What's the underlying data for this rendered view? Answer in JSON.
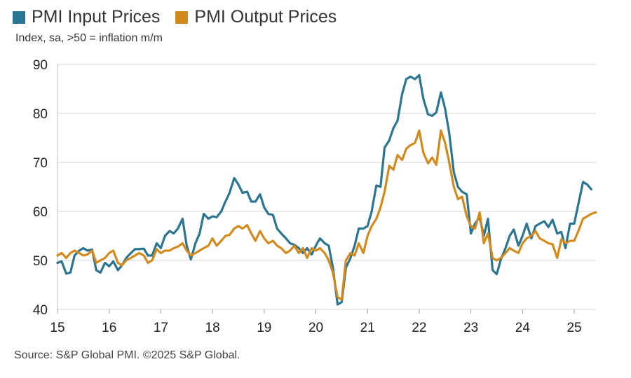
{
  "chart_data": {
    "type": "line",
    "title": "",
    "subtitle": "Index, sa, >50 = inflation m/m",
    "source": "Source: S&P Global PMI. ©2025 S&P Global.",
    "xlabel": "",
    "ylabel": "",
    "ylim": [
      40,
      90
    ],
    "yticks": [
      40,
      50,
      60,
      70,
      80,
      90
    ],
    "xlim": [
      2015.0,
      2025.42
    ],
    "xticks": [
      {
        "value": 2015,
        "label": "15"
      },
      {
        "value": 2016,
        "label": "16"
      },
      {
        "value": 2017,
        "label": "17"
      },
      {
        "value": 2018,
        "label": "18"
      },
      {
        "value": 2019,
        "label": "19"
      },
      {
        "value": 2020,
        "label": "20"
      },
      {
        "value": 2021,
        "label": "21"
      },
      {
        "value": 2022,
        "label": "22"
      },
      {
        "value": 2023,
        "label": "23"
      },
      {
        "value": 2024,
        "label": "24"
      },
      {
        "value": 2025,
        "label": "25"
      }
    ],
    "grid": "horizontal",
    "legend_position": "top-left",
    "series": [
      {
        "name": "PMI Input Prices",
        "color": "#2a7591",
        "points": [
          [
            2015.0,
            49.5
          ],
          [
            2015.08,
            49.8
          ],
          [
            2015.17,
            47.3
          ],
          [
            2015.25,
            47.5
          ],
          [
            2015.33,
            51.0
          ],
          [
            2015.42,
            52.0
          ],
          [
            2015.5,
            52.5
          ],
          [
            2015.58,
            52.0
          ],
          [
            2015.67,
            52.2
          ],
          [
            2015.75,
            48.0
          ],
          [
            2015.83,
            47.5
          ],
          [
            2015.92,
            49.5
          ],
          [
            2016.0,
            48.8
          ],
          [
            2016.08,
            49.8
          ],
          [
            2016.17,
            48.0
          ],
          [
            2016.25,
            49.0
          ],
          [
            2016.33,
            50.5
          ],
          [
            2016.42,
            51.5
          ],
          [
            2016.5,
            52.3
          ],
          [
            2016.58,
            52.3
          ],
          [
            2016.67,
            52.4
          ],
          [
            2016.75,
            51.0
          ],
          [
            2016.83,
            51.0
          ],
          [
            2016.92,
            53.5
          ],
          [
            2017.0,
            52.5
          ],
          [
            2017.08,
            55.0
          ],
          [
            2017.17,
            56.0
          ],
          [
            2017.25,
            55.5
          ],
          [
            2017.33,
            56.5
          ],
          [
            2017.42,
            58.5
          ],
          [
            2017.5,
            53.0
          ],
          [
            2017.58,
            50.2
          ],
          [
            2017.67,
            53.5
          ],
          [
            2017.75,
            55.5
          ],
          [
            2017.83,
            59.5
          ],
          [
            2017.92,
            58.5
          ],
          [
            2018.0,
            59.0
          ],
          [
            2018.08,
            58.8
          ],
          [
            2018.17,
            60.0
          ],
          [
            2018.25,
            62.0
          ],
          [
            2018.33,
            63.8
          ],
          [
            2018.42,
            66.8
          ],
          [
            2018.5,
            65.5
          ],
          [
            2018.58,
            63.8
          ],
          [
            2018.67,
            64.0
          ],
          [
            2018.75,
            62.0
          ],
          [
            2018.83,
            62.0
          ],
          [
            2018.92,
            63.5
          ],
          [
            2019.0,
            60.8
          ],
          [
            2019.08,
            59.5
          ],
          [
            2019.17,
            59.3
          ],
          [
            2019.25,
            56.5
          ],
          [
            2019.33,
            55.5
          ],
          [
            2019.42,
            54.5
          ],
          [
            2019.5,
            53.5
          ],
          [
            2019.58,
            53.2
          ],
          [
            2019.67,
            52.5
          ],
          [
            2019.75,
            51.5
          ],
          [
            2019.83,
            52.5
          ],
          [
            2019.92,
            51.2
          ],
          [
            2020.0,
            53.0
          ],
          [
            2020.08,
            54.5
          ],
          [
            2020.17,
            53.5
          ],
          [
            2020.25,
            53.0
          ],
          [
            2020.33,
            48.5
          ],
          [
            2020.42,
            41.0
          ],
          [
            2020.5,
            41.5
          ],
          [
            2020.58,
            48.5
          ],
          [
            2020.67,
            50.5
          ],
          [
            2020.75,
            53.0
          ],
          [
            2020.83,
            56.5
          ],
          [
            2020.92,
            56.5
          ],
          [
            2021.0,
            57.0
          ],
          [
            2021.08,
            60.0
          ],
          [
            2021.17,
            65.3
          ],
          [
            2021.25,
            65.0
          ],
          [
            2021.33,
            73.0
          ],
          [
            2021.42,
            74.5
          ],
          [
            2021.5,
            77.0
          ],
          [
            2021.58,
            78.5
          ],
          [
            2021.67,
            84.0
          ],
          [
            2021.75,
            87.0
          ],
          [
            2021.83,
            87.5
          ],
          [
            2021.92,
            87.0
          ],
          [
            2022.0,
            87.8
          ],
          [
            2022.08,
            83.0
          ],
          [
            2022.17,
            79.8
          ],
          [
            2022.25,
            79.5
          ],
          [
            2022.33,
            80.2
          ],
          [
            2022.42,
            84.3
          ],
          [
            2022.5,
            81.0
          ],
          [
            2022.58,
            76.0
          ],
          [
            2022.67,
            68.0
          ],
          [
            2022.75,
            65.0
          ],
          [
            2022.83,
            64.0
          ],
          [
            2022.92,
            63.5
          ],
          [
            2023.0,
            55.5
          ],
          [
            2023.08,
            57.5
          ],
          [
            2023.17,
            58.8
          ],
          [
            2023.25,
            55.0
          ],
          [
            2023.33,
            58.5
          ],
          [
            2023.42,
            48.0
          ],
          [
            2023.5,
            47.2
          ],
          [
            2023.58,
            50.2
          ],
          [
            2023.67,
            52.5
          ],
          [
            2023.75,
            55.0
          ],
          [
            2023.83,
            56.3
          ],
          [
            2023.92,
            53.0
          ],
          [
            2024.0,
            55.0
          ],
          [
            2024.08,
            57.5
          ],
          [
            2024.17,
            54.5
          ],
          [
            2024.25,
            57.0
          ],
          [
            2024.33,
            57.5
          ],
          [
            2024.42,
            58.0
          ],
          [
            2024.5,
            56.8
          ],
          [
            2024.58,
            58.3
          ],
          [
            2024.67,
            55.5
          ],
          [
            2024.75,
            55.8
          ],
          [
            2024.83,
            52.5
          ],
          [
            2024.92,
            57.5
          ],
          [
            2025.0,
            57.5
          ],
          [
            2025.08,
            61.5
          ],
          [
            2025.17,
            66.0
          ],
          [
            2025.25,
            65.5
          ],
          [
            2025.33,
            64.5
          ]
        ]
      },
      {
        "name": "PMI Output Prices",
        "color": "#d38a1c",
        "points": [
          [
            2015.0,
            51.0
          ],
          [
            2015.08,
            51.5
          ],
          [
            2015.17,
            50.5
          ],
          [
            2015.25,
            51.5
          ],
          [
            2015.33,
            52.0
          ],
          [
            2015.42,
            51.5
          ],
          [
            2015.5,
            51.0
          ],
          [
            2015.58,
            51.2
          ],
          [
            2015.67,
            52.0
          ],
          [
            2015.75,
            49.5
          ],
          [
            2015.83,
            50.0
          ],
          [
            2015.92,
            50.5
          ],
          [
            2016.0,
            51.5
          ],
          [
            2016.08,
            52.0
          ],
          [
            2016.17,
            49.5
          ],
          [
            2016.25,
            49.0
          ],
          [
            2016.33,
            50.0
          ],
          [
            2016.42,
            50.5
          ],
          [
            2016.5,
            51.0
          ],
          [
            2016.58,
            51.5
          ],
          [
            2016.67,
            51.0
          ],
          [
            2016.75,
            49.5
          ],
          [
            2016.83,
            50.0
          ],
          [
            2016.92,
            52.3
          ],
          [
            2017.0,
            51.5
          ],
          [
            2017.08,
            52.0
          ],
          [
            2017.17,
            52.0
          ],
          [
            2017.25,
            52.5
          ],
          [
            2017.33,
            52.8
          ],
          [
            2017.42,
            53.5
          ],
          [
            2017.5,
            52.0
          ],
          [
            2017.58,
            51.0
          ],
          [
            2017.67,
            51.5
          ],
          [
            2017.75,
            52.0
          ],
          [
            2017.83,
            52.5
          ],
          [
            2017.92,
            53.0
          ],
          [
            2018.0,
            54.5
          ],
          [
            2018.08,
            53.0
          ],
          [
            2018.17,
            54.0
          ],
          [
            2018.25,
            55.0
          ],
          [
            2018.33,
            55.2
          ],
          [
            2018.42,
            56.5
          ],
          [
            2018.5,
            57.0
          ],
          [
            2018.58,
            56.5
          ],
          [
            2018.67,
            57.2
          ],
          [
            2018.75,
            55.5
          ],
          [
            2018.83,
            54.0
          ],
          [
            2018.92,
            56.0
          ],
          [
            2019.0,
            54.5
          ],
          [
            2019.08,
            53.5
          ],
          [
            2019.17,
            54.0
          ],
          [
            2019.25,
            53.0
          ],
          [
            2019.33,
            52.5
          ],
          [
            2019.42,
            51.5
          ],
          [
            2019.5,
            52.0
          ],
          [
            2019.58,
            53.0
          ],
          [
            2019.67,
            51.5
          ],
          [
            2019.75,
            52.5
          ],
          [
            2019.83,
            50.5
          ],
          [
            2019.92,
            52.5
          ],
          [
            2020.0,
            52.0
          ],
          [
            2020.08,
            52.5
          ],
          [
            2020.17,
            51.5
          ],
          [
            2020.25,
            50.0
          ],
          [
            2020.33,
            47.5
          ],
          [
            2020.42,
            42.5
          ],
          [
            2020.5,
            42.0
          ],
          [
            2020.58,
            50.0
          ],
          [
            2020.67,
            51.5
          ],
          [
            2020.75,
            51.0
          ],
          [
            2020.83,
            53.5
          ],
          [
            2020.92,
            51.5
          ],
          [
            2021.0,
            55.0
          ],
          [
            2021.08,
            57.0
          ],
          [
            2021.17,
            58.5
          ],
          [
            2021.25,
            60.8
          ],
          [
            2021.33,
            64.0
          ],
          [
            2021.42,
            69.3
          ],
          [
            2021.5,
            68.5
          ],
          [
            2021.58,
            71.5
          ],
          [
            2021.67,
            70.5
          ],
          [
            2021.75,
            72.8
          ],
          [
            2021.83,
            73.5
          ],
          [
            2021.92,
            74.0
          ],
          [
            2022.0,
            76.5
          ],
          [
            2022.08,
            72.0
          ],
          [
            2022.17,
            69.8
          ],
          [
            2022.25,
            71.0
          ],
          [
            2022.33,
            69.5
          ],
          [
            2022.42,
            76.5
          ],
          [
            2022.5,
            74.0
          ],
          [
            2022.58,
            70.0
          ],
          [
            2022.67,
            65.0
          ],
          [
            2022.75,
            62.5
          ],
          [
            2022.83,
            63.0
          ],
          [
            2022.92,
            59.0
          ],
          [
            2023.0,
            57.0
          ],
          [
            2023.08,
            56.5
          ],
          [
            2023.17,
            59.8
          ],
          [
            2023.25,
            53.5
          ],
          [
            2023.33,
            55.5
          ],
          [
            2023.42,
            50.5
          ],
          [
            2023.5,
            50.0
          ],
          [
            2023.58,
            50.5
          ],
          [
            2023.67,
            51.5
          ],
          [
            2023.75,
            52.5
          ],
          [
            2023.83,
            52.0
          ],
          [
            2023.92,
            51.5
          ],
          [
            2024.0,
            53.5
          ],
          [
            2024.08,
            54.5
          ],
          [
            2024.17,
            55.0
          ],
          [
            2024.25,
            56.0
          ],
          [
            2024.33,
            54.5
          ],
          [
            2024.42,
            54.0
          ],
          [
            2024.5,
            53.5
          ],
          [
            2024.58,
            53.3
          ],
          [
            2024.67,
            50.5
          ],
          [
            2024.75,
            54.3
          ],
          [
            2024.83,
            53.5
          ],
          [
            2024.92,
            54.0
          ],
          [
            2025.0,
            54.0
          ],
          [
            2025.08,
            56.0
          ],
          [
            2025.17,
            58.5
          ],
          [
            2025.25,
            59.0
          ],
          [
            2025.33,
            59.5
          ],
          [
            2025.42,
            59.8
          ]
        ]
      }
    ]
  }
}
